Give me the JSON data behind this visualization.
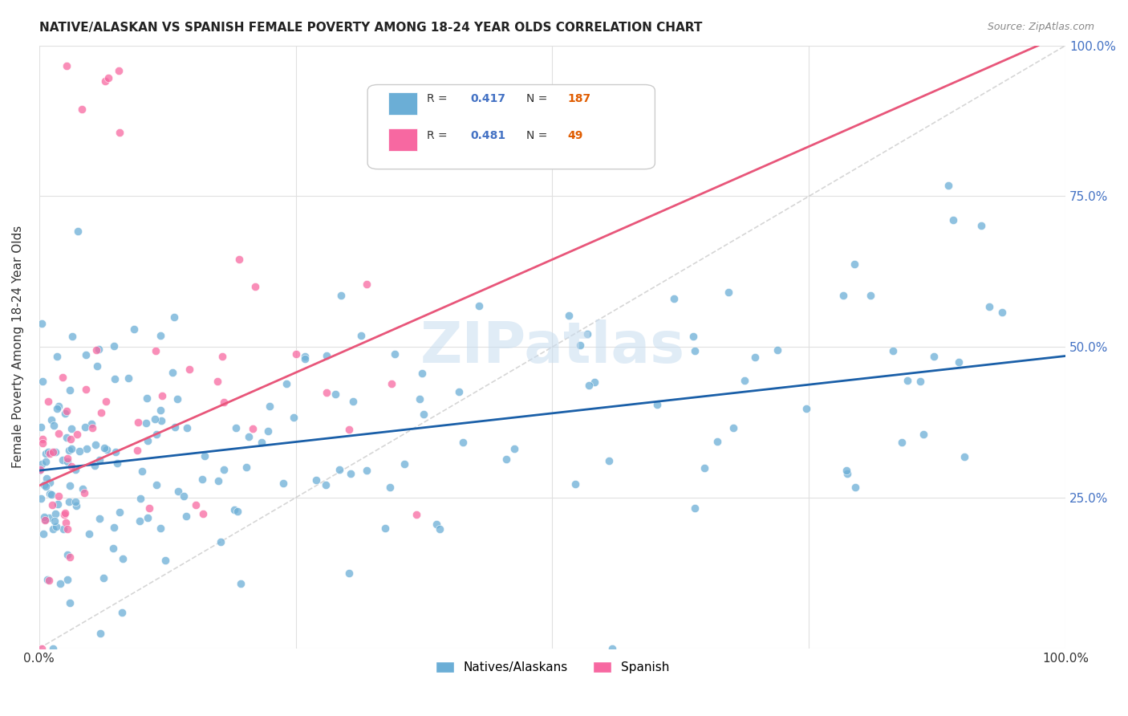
{
  "title": "NATIVE/ALASKAN VS SPANISH FEMALE POVERTY AMONG 18-24 YEAR OLDS CORRELATION CHART",
  "source": "Source: ZipAtlas.com",
  "ylabel": "Female Poverty Among 18-24 Year Olds",
  "xlim": [
    0.0,
    1.0
  ],
  "ylim": [
    0.0,
    1.0
  ],
  "blue_color": "#6baed6",
  "pink_color": "#f768a1",
  "blue_line_color": "#1a5fa8",
  "pink_line_color": "#e8567a",
  "R_blue": 0.417,
  "N_blue": 187,
  "R_pink": 0.481,
  "N_pink": 49,
  "legend_labels": [
    "Natives/Alaskans",
    "Spanish"
  ],
  "watermark": "ZIPatlas",
  "blue_intercept": 0.295,
  "blue_slope": 0.19,
  "pink_intercept": 0.27,
  "pink_slope": 0.75
}
